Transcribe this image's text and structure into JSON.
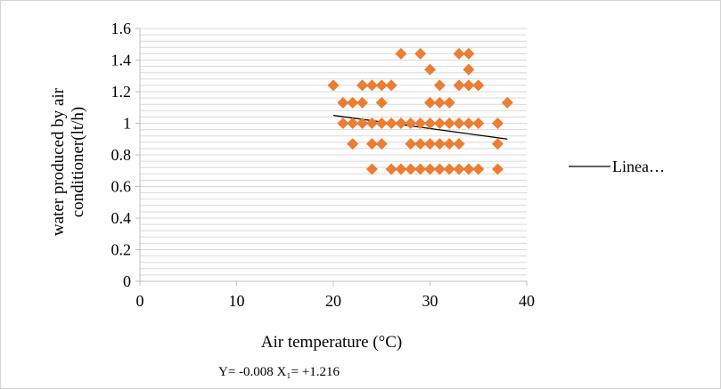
{
  "chart_data": {
    "type": "scatter",
    "title": "",
    "xlabel": "Air temperature (°C)",
    "ylabel_lines": [
      "water produced by air",
      "conditioner(lt/h)"
    ],
    "xlim": [
      0,
      40
    ],
    "ylim": [
      0,
      1.6
    ],
    "x_ticks": [
      "0",
      "10",
      "20",
      "30",
      "40"
    ],
    "y_ticks": [
      "0",
      "0.2",
      "0.4",
      "0.6",
      "0.8",
      "1",
      "1.2",
      "1.4",
      "1.6"
    ],
    "grid": "horizontal minor lines every 0.04",
    "marker_color": "#ED7D31",
    "trendline_color": "#000000",
    "legend_position": "right",
    "legend_label": "Linea…",
    "equation": "Y= -0.008 X₁= +1.216",
    "points": [
      [
        20,
        1.24
      ],
      [
        21,
        1.13
      ],
      [
        22,
        1.13
      ],
      [
        23,
        1.13
      ],
      [
        21,
        1.0
      ],
      [
        22,
        1.0
      ],
      [
        23,
        1.0
      ],
      [
        24,
        1.0
      ],
      [
        25,
        1.0
      ],
      [
        26,
        1.0
      ],
      [
        27,
        1.0
      ],
      [
        28,
        1.0
      ],
      [
        29,
        1.0
      ],
      [
        30,
        1.0
      ],
      [
        31,
        1.0
      ],
      [
        32,
        1.0
      ],
      [
        33,
        1.0
      ],
      [
        34,
        1.0
      ],
      [
        35,
        1.0
      ],
      [
        22,
        0.87
      ],
      [
        24,
        0.87
      ],
      [
        25,
        0.87
      ],
      [
        23,
        1.24
      ],
      [
        24,
        1.24
      ],
      [
        25,
        1.24
      ],
      [
        26,
        1.24
      ],
      [
        25,
        1.13
      ],
      [
        24,
        0.71
      ],
      [
        26,
        0.71
      ],
      [
        27,
        0.71
      ],
      [
        28,
        0.71
      ],
      [
        29,
        0.71
      ],
      [
        30,
        0.71
      ],
      [
        31,
        0.71
      ],
      [
        32,
        0.71
      ],
      [
        33,
        0.71
      ],
      [
        34,
        0.71
      ],
      [
        35,
        0.71
      ],
      [
        27,
        1.44
      ],
      [
        29,
        1.44
      ],
      [
        33,
        1.44
      ],
      [
        34,
        1.44
      ],
      [
        30,
        1.34
      ],
      [
        34,
        1.34
      ],
      [
        31,
        1.24
      ],
      [
        33,
        1.24
      ],
      [
        34,
        1.24
      ],
      [
        35,
        1.24
      ],
      [
        30,
        1.13
      ],
      [
        31,
        1.13
      ],
      [
        32,
        1.13
      ],
      [
        28,
        0.87
      ],
      [
        29,
        0.87
      ],
      [
        30,
        0.87
      ],
      [
        31,
        0.87
      ],
      [
        32,
        0.87
      ],
      [
        33,
        0.87
      ],
      [
        37,
        1.0
      ],
      [
        37,
        0.87
      ],
      [
        37,
        0.71
      ],
      [
        38,
        1.13
      ]
    ],
    "trendline": {
      "x": [
        20,
        38
      ],
      "y": [
        1.05,
        0.9
      ]
    }
  }
}
